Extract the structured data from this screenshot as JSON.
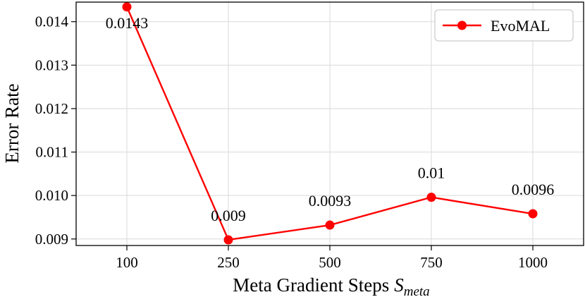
{
  "chart_data": {
    "type": "line",
    "categories": [
      "100",
      "250",
      "500",
      "750",
      "1000"
    ],
    "series": [
      {
        "name": "EvoMAL",
        "values": [
          0.01434,
          0.00898,
          0.00932,
          0.00996,
          0.00958
        ],
        "labels": [
          "0.0143",
          "0.009",
          "0.0093",
          "0.01",
          "0.0096"
        ],
        "color": "#ff0000"
      }
    ],
    "xlabel": "Meta Gradient Steps",
    "xlabel_symbol": "S",
    "xlabel_subscript": "meta",
    "ylabel": "Error Rate",
    "yticks": [
      0.009,
      0.01,
      0.011,
      0.012,
      0.013,
      0.014
    ],
    "ytick_labels": [
      "0.009",
      "0.010",
      "0.011",
      "0.012",
      "0.013",
      "0.014"
    ],
    "ylim": [
      0.00885,
      0.01445
    ],
    "grid": true,
    "legend_position": "top-right"
  }
}
